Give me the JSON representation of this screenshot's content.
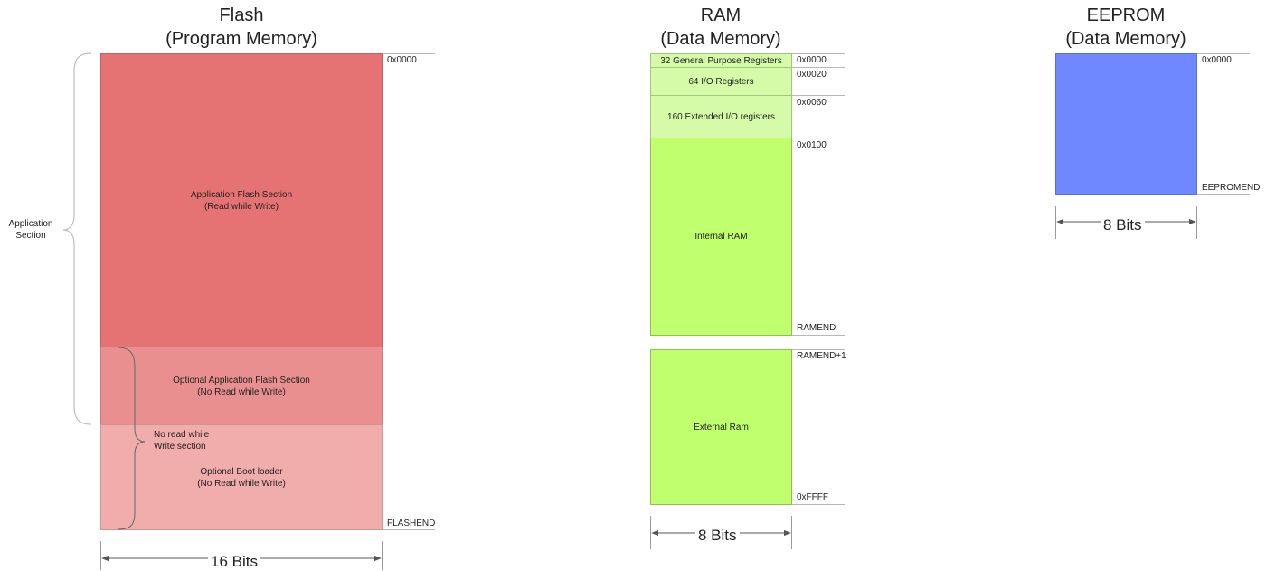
{
  "flash": {
    "title_line1": "Flash",
    "title_line2": "(Program Memory)",
    "app_section_line1": "Application Flash Section",
    "app_section_line2": "(Read while Write)",
    "opt_app_line1": "Optional Application Flash Section",
    "opt_app_line2": "(No Read while Write)",
    "boot_line1": "Optional Boot loader",
    "boot_line2": "(No Read while Write)",
    "nrww_line1": "No read while",
    "nrww_line2": "Write section",
    "application_brace_line1": "Application",
    "application_brace_line2": "Section",
    "addr_start": "0x0000",
    "addr_end": "FLASHEND",
    "width": "16 Bits",
    "colors": {
      "app": "#e57373",
      "opt_app": "#e98f8f",
      "boot": "#f0adab"
    }
  },
  "ram": {
    "title_line1": "RAM",
    "title_line2": "(Data Memory)",
    "gp_registers": "32 General Purpose Registers",
    "io_registers": "64 I/O Registers",
    "ext_io_registers": "160 Extended I/O registers",
    "internal": "Internal RAM",
    "external": "External Ram",
    "addr_0000": "0x0000",
    "addr_0020": "0x0020",
    "addr_0060": "0x0060",
    "addr_0100": "0x0100",
    "addr_ramend": "RAMEND",
    "addr_ramend1": "RAMEND+1",
    "addr_ffff": "0xFFFF",
    "width": "8 Bits",
    "colors": {
      "reg": "#d5fba8",
      "ram": "#c0ff6e"
    }
  },
  "eeprom": {
    "title_line1": "EEPROM",
    "title_line2": "(Data Memory)",
    "addr_start": "0x0000",
    "addr_end": "EEPROMEND",
    "width": "8 Bits",
    "colors": {
      "mem": "#7088ff"
    }
  }
}
